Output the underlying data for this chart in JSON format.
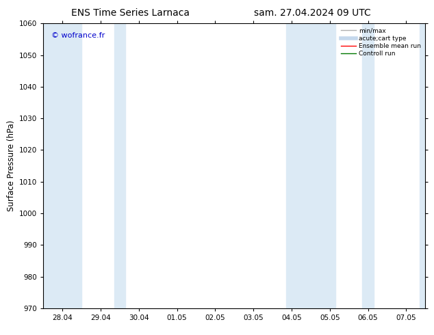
{
  "title_left": "ENS Time Series Larnaca",
  "title_right": "sam. 27.04.2024 09 UTC",
  "ylabel": "Surface Pressure (hPa)",
  "ylim": [
    970,
    1060
  ],
  "yticks": [
    970,
    980,
    990,
    1000,
    1010,
    1020,
    1030,
    1040,
    1050,
    1060
  ],
  "xtick_labels": [
    "28.04",
    "29.04",
    "30.04",
    "01.05",
    "02.05",
    "03.05",
    "04.05",
    "05.05",
    "06.05",
    "07.05"
  ],
  "shaded_bands": [
    {
      "xmin": -0.5,
      "xmax": 0.5
    },
    {
      "xmin": 1.35,
      "xmax": 1.65
    },
    {
      "xmin": 5.85,
      "xmax": 7.15
    },
    {
      "xmin": 7.85,
      "xmax": 8.15
    },
    {
      "xmin": 9.35,
      "xmax": 9.9
    }
  ],
  "band_color": "#dceaf5",
  "watermark": "© wofrance.fr",
  "watermark_color": "#0000cc",
  "legend_entries": [
    {
      "label": "min/max",
      "color": "#b0b0b0",
      "linestyle": "-",
      "linewidth": 1.0
    },
    {
      "label": "acute;cart type",
      "color": "#c5d8ec",
      "linestyle": "-",
      "linewidth": 4
    },
    {
      "label": "Ensemble mean run",
      "color": "#ff0000",
      "linestyle": "-",
      "linewidth": 1.0
    },
    {
      "label": "Controll run",
      "color": "#007700",
      "linestyle": "-",
      "linewidth": 1.0
    }
  ],
  "bg_color": "#ffffff",
  "title_fontsize": 10,
  "tick_fontsize": 7.5,
  "ylabel_fontsize": 8.5
}
